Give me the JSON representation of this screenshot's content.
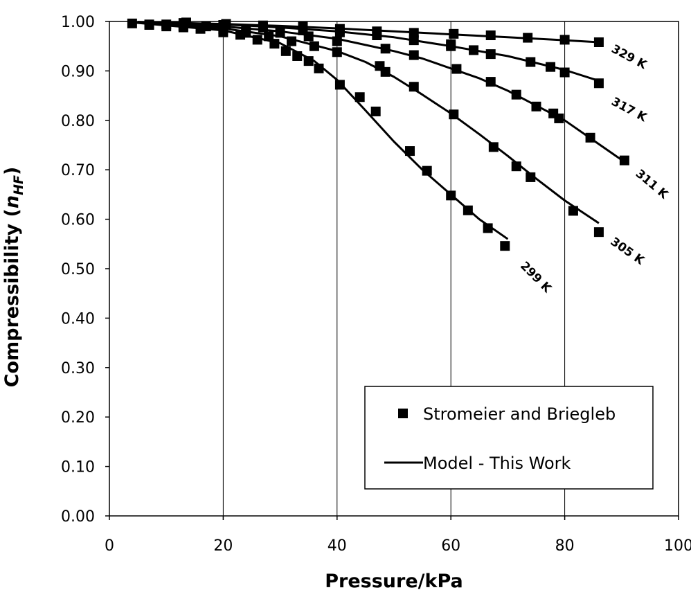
{
  "chart_data": {
    "type": "scatter",
    "xlabel": "Pressure/kPa",
    "ylabel_main": "Compressibility (",
    "ylabel_var": "n",
    "ylabel_sub": "HF",
    "ylabel_close": ")",
    "xlim": [
      0,
      100
    ],
    "ylim": [
      0.0,
      1.0
    ],
    "x_ticks": [
      "0",
      "20",
      "40",
      "60",
      "80",
      "100"
    ],
    "y_ticks": [
      "0.00",
      "0.10",
      "0.20",
      "0.30",
      "0.40",
      "0.50",
      "0.60",
      "0.70",
      "0.80",
      "0.90",
      "1.00"
    ],
    "grid": "vertical",
    "legend": {
      "placement": "bottom-right",
      "markers_label": "Stromeier and Briegleb",
      "model_label": "Model - This Work"
    },
    "series": [
      {
        "name": "299 K",
        "points": [
          [
            4,
            0.996
          ],
          [
            7,
            0.993
          ],
          [
            10,
            0.99
          ],
          [
            13,
            0.988
          ],
          [
            16,
            0.985
          ],
          [
            20,
            0.978
          ],
          [
            23,
            0.973
          ],
          [
            26,
            0.963
          ],
          [
            29,
            0.955
          ],
          [
            31,
            0.94
          ],
          [
            33,
            0.93
          ],
          [
            35,
            0.92
          ],
          [
            36.8,
            0.905
          ],
          [
            40.5,
            0.872
          ],
          [
            44,
            0.847
          ],
          [
            46.8,
            0.818
          ],
          [
            52.8,
            0.738
          ],
          [
            55.8,
            0.698
          ],
          [
            60,
            0.648
          ],
          [
            63,
            0.618
          ],
          [
            66.5,
            0.582
          ],
          [
            69.5,
            0.546
          ]
        ],
        "model": [
          [
            4,
            0.998
          ],
          [
            20,
            0.982
          ],
          [
            30,
            0.956
          ],
          [
            36,
            0.92
          ],
          [
            40,
            0.882
          ],
          [
            45,
            0.82
          ],
          [
            50,
            0.757
          ],
          [
            55,
            0.7
          ],
          [
            60,
            0.65
          ],
          [
            65,
            0.6
          ],
          [
            70,
            0.56
          ]
        ]
      },
      {
        "name": "305 K",
        "points": [
          [
            7,
            0.994
          ],
          [
            13,
            0.99
          ],
          [
            20,
            0.984
          ],
          [
            24,
            0.977
          ],
          [
            28,
            0.97
          ],
          [
            32,
            0.96
          ],
          [
            36,
            0.95
          ],
          [
            40,
            0.938
          ],
          [
            47.5,
            0.91
          ],
          [
            48.5,
            0.898
          ],
          [
            53.5,
            0.868
          ],
          [
            60.5,
            0.812
          ],
          [
            67.5,
            0.746
          ],
          [
            71.5,
            0.707
          ],
          [
            74,
            0.685
          ],
          [
            81.5,
            0.617
          ],
          [
            86,
            0.574
          ]
        ],
        "model": [
          [
            5,
            0.998
          ],
          [
            20,
            0.986
          ],
          [
            30,
            0.97
          ],
          [
            40,
            0.94
          ],
          [
            45,
            0.918
          ],
          [
            50,
            0.888
          ],
          [
            55,
            0.852
          ],
          [
            60,
            0.814
          ],
          [
            65,
            0.772
          ],
          [
            70,
            0.728
          ],
          [
            75,
            0.682
          ],
          [
            80,
            0.638
          ],
          [
            86,
            0.592
          ]
        ]
      },
      {
        "name": "311 K",
        "points": [
          [
            10,
            0.994
          ],
          [
            17,
            0.99
          ],
          [
            24,
            0.984
          ],
          [
            30,
            0.977
          ],
          [
            35,
            0.97
          ],
          [
            40,
            0.96
          ],
          [
            48.5,
            0.945
          ],
          [
            53.5,
            0.932
          ],
          [
            60,
            0.95
          ],
          [
            61,
            0.904
          ],
          [
            67,
            0.878
          ],
          [
            71.5,
            0.852
          ],
          [
            75,
            0.828
          ],
          [
            78,
            0.814
          ],
          [
            79,
            0.804
          ],
          [
            84.5,
            0.765
          ],
          [
            90.5,
            0.719
          ]
        ],
        "model": [
          [
            5,
            0.999
          ],
          [
            20,
            0.99
          ],
          [
            30,
            0.98
          ],
          [
            40,
            0.965
          ],
          [
            50,
            0.94
          ],
          [
            55,
            0.925
          ],
          [
            60,
            0.905
          ],
          [
            65,
            0.885
          ],
          [
            70,
            0.86
          ],
          [
            75,
            0.83
          ],
          [
            80,
            0.8
          ],
          [
            85,
            0.76
          ],
          [
            90,
            0.72
          ]
        ]
      },
      {
        "name": "317 K",
        "points": [
          [
            13,
            0.997
          ],
          [
            20,
            0.993
          ],
          [
            27,
            0.988
          ],
          [
            34,
            0.982
          ],
          [
            40.5,
            0.978
          ],
          [
            47,
            0.972
          ],
          [
            53.5,
            0.962
          ],
          [
            60,
            0.954
          ],
          [
            64,
            0.942
          ],
          [
            67,
            0.934
          ],
          [
            74,
            0.918
          ],
          [
            77.5,
            0.908
          ],
          [
            80,
            0.897
          ],
          [
            86,
            0.875
          ]
        ],
        "model": [
          [
            5,
            0.999
          ],
          [
            20,
            0.994
          ],
          [
            30,
            0.988
          ],
          [
            40,
            0.98
          ],
          [
            50,
            0.968
          ],
          [
            60,
            0.95
          ],
          [
            70,
            0.93
          ],
          [
            80,
            0.902
          ],
          [
            86,
            0.88
          ]
        ]
      },
      {
        "name": "329 K",
        "points": [
          [
            13.5,
            0.998
          ],
          [
            20.5,
            0.995
          ],
          [
            27,
            0.992
          ],
          [
            34,
            0.99
          ],
          [
            40.5,
            0.985
          ],
          [
            47,
            0.98
          ],
          [
            53.5,
            0.977
          ],
          [
            60.5,
            0.975
          ],
          [
            67,
            0.972
          ],
          [
            73.5,
            0.967
          ],
          [
            80,
            0.963
          ],
          [
            86,
            0.958
          ]
        ],
        "model": [
          [
            5,
            0.999
          ],
          [
            20,
            0.995
          ],
          [
            30,
            0.991
          ],
          [
            40,
            0.986
          ],
          [
            50,
            0.98
          ],
          [
            60,
            0.974
          ],
          [
            70,
            0.968
          ],
          [
            80,
            0.962
          ],
          [
            86,
            0.958
          ]
        ]
      }
    ]
  }
}
